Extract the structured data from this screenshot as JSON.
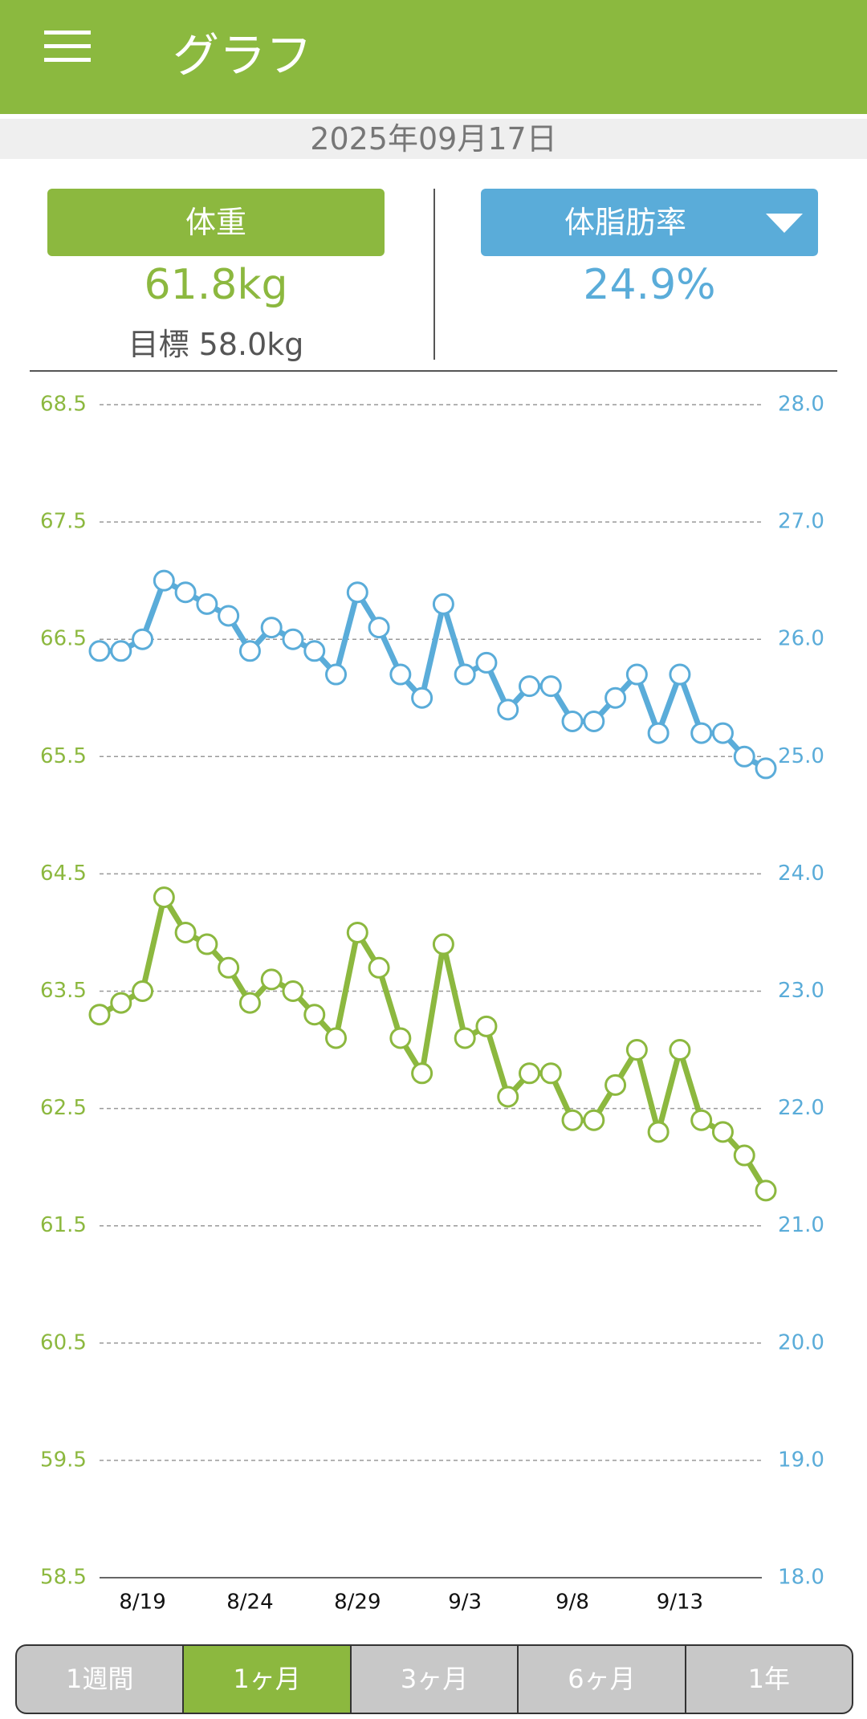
{
  "header": {
    "title": "グラフ"
  },
  "date": "2025年09月17日",
  "cards": [
    {
      "value": "61.8kg",
      "goal": "目標 58.0kg"
    },
    {
      "value": "24.9%"
    }
  ],
  "tabs": [
    "1週間",
    "1ヶ月",
    "3ヶ月",
    "6ヶ月",
    "1年"
  ],
  "chart_data": {
    "type": "line",
    "categories": [
      null,
      null,
      "8/19",
      null,
      null,
      null,
      null,
      "8/24",
      null,
      null,
      null,
      null,
      "8/29",
      null,
      null,
      null,
      null,
      "9/3",
      null,
      null,
      null,
      null,
      "9/8",
      null,
      null,
      null,
      null,
      "9/13",
      null,
      null,
      null,
      null
    ],
    "series": [
      {
        "name": "体重",
        "color": "#8cb83f",
        "values": [
          63.3,
          63.4,
          63.5,
          64.3,
          64.0,
          63.9,
          63.7,
          63.4,
          63.6,
          63.5,
          63.3,
          63.1,
          64.0,
          63.7,
          63.1,
          62.8,
          63.9,
          63.1,
          63.2,
          62.6,
          62.8,
          62.8,
          62.4,
          62.4,
          62.7,
          63.0,
          62.3,
          63.0,
          62.4,
          62.3,
          62.1,
          61.8
        ]
      },
      {
        "name": "体脂肪率",
        "color": "#5aacd9",
        "axis": "y2",
        "values": [
          25.9,
          25.9,
          26.0,
          26.5,
          26.4,
          26.3,
          26.2,
          25.9,
          26.1,
          26.0,
          25.9,
          25.7,
          26.4,
          26.1,
          25.7,
          25.5,
          26.3,
          25.7,
          25.8,
          25.4,
          25.6,
          25.6,
          25.3,
          25.3,
          25.5,
          25.7,
          25.2,
          25.7,
          25.2,
          25.2,
          25.0,
          24.9
        ]
      }
    ],
    "ylim": [
      58.5,
      68.5
    ],
    "yticks": [
      58.5,
      59.5,
      60.5,
      61.5,
      62.5,
      63.5,
      64.5,
      65.5,
      66.5,
      67.5,
      68.5
    ],
    "y2lim": [
      18,
      28
    ],
    "y2ticks": [
      {
        "value": 18,
        "label": "18.0"
      },
      {
        "value": 19,
        "label": "19.0"
      },
      {
        "value": 20,
        "label": "20.0"
      },
      {
        "value": 21,
        "label": "21.0"
      },
      {
        "value": 22,
        "label": "22.0"
      },
      {
        "value": 23,
        "label": "23.0"
      },
      {
        "value": 24,
        "label": "24.0"
      },
      {
        "value": 25,
        "label": "25.0"
      },
      {
        "value": 26,
        "label": "26.0"
      },
      {
        "value": 27,
        "label": "27.0"
      },
      {
        "value": 28,
        "label": "28.0"
      }
    ],
    "grid": true
  }
}
